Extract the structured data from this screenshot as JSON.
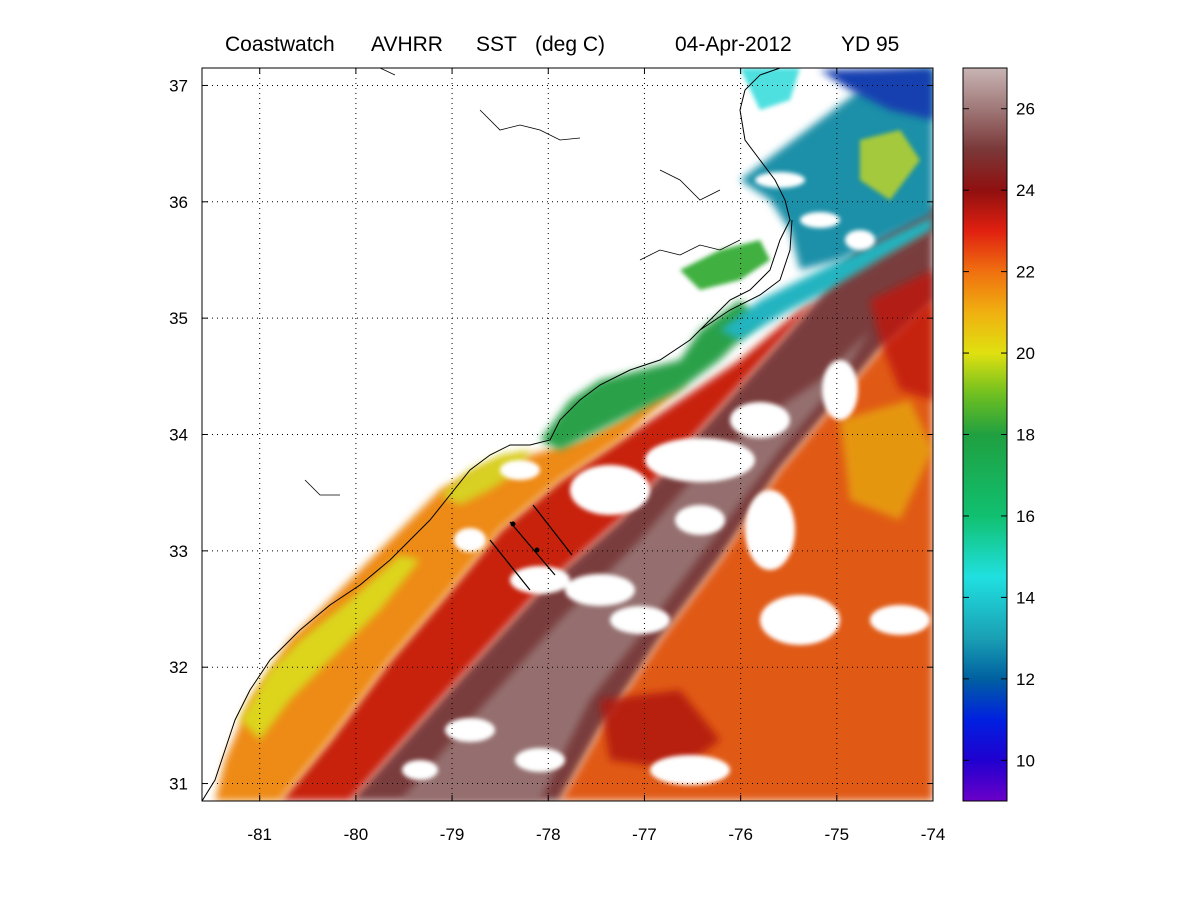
{
  "map": {
    "title": {
      "source": "Coastwatch",
      "sensor": "AVHRR",
      "product": "SST",
      "units": "(deg C)",
      "date": "04-Apr-2012",
      "yearday": "YD 95"
    },
    "extent": {
      "lon": [
        -81.6,
        -74
      ],
      "lat": [
        30.85,
        37.15
      ]
    },
    "lon_ticks": [
      -81,
      -80,
      -79,
      -78,
      -77,
      -76,
      -75,
      -74
    ],
    "lat_ticks": [
      31,
      32,
      33,
      34,
      35,
      36,
      37
    ],
    "grid": true,
    "grid_style": "dotted",
    "colors": {
      "land_and_cloud": "#ffffff",
      "coastline": "#000000",
      "gulf_stream": "#7a3c3c",
      "shelf_warm": "#e0401a",
      "nearshore": "#e8d21a",
      "northern_shelf": "#1ea0a0",
      "cold_north": "#1a40c0"
    }
  },
  "colorbar": {
    "range": [
      9,
      27
    ],
    "ticks": [
      10,
      12,
      14,
      16,
      18,
      20,
      22,
      24,
      26
    ],
    "colormap": "jet-plus-brown",
    "stops": [
      {
        "v": 9,
        "c": "#6a00c8"
      },
      {
        "v": 10,
        "c": "#2000d0"
      },
      {
        "v": 11,
        "c": "#0020e0"
      },
      {
        "v": 12,
        "c": "#0060a0"
      },
      {
        "v": 13,
        "c": "#1aa0b4"
      },
      {
        "v": 14.5,
        "c": "#20e0e0"
      },
      {
        "v": 16,
        "c": "#10c070"
      },
      {
        "v": 18,
        "c": "#20a040"
      },
      {
        "v": 19,
        "c": "#70c020"
      },
      {
        "v": 20,
        "c": "#e0e010"
      },
      {
        "v": 21,
        "c": "#f0b010"
      },
      {
        "v": 22,
        "c": "#f07010"
      },
      {
        "v": 23,
        "c": "#e02010"
      },
      {
        "v": 24,
        "c": "#901010"
      },
      {
        "v": 25,
        "c": "#7a3838"
      },
      {
        "v": 26,
        "c": "#a07878"
      },
      {
        "v": 27,
        "c": "#c8b4b4"
      }
    ]
  }
}
